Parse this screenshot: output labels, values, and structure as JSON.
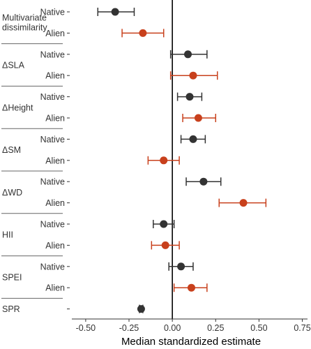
{
  "chart_data": {
    "type": "scatter",
    "xlabel": "Median standardized estimate",
    "xlim": [
      -0.58,
      0.78
    ],
    "xticks": [
      -0.5,
      -0.25,
      0.0,
      0.25,
      0.5,
      0.75
    ],
    "xtick_labels": [
      "-0.50",
      "-0.25",
      "0.00",
      "0.25",
      "0.50",
      "0.75"
    ],
    "reference_line_x": 0,
    "grid": false,
    "colors": {
      "native": "#333333",
      "alien": "#c8401c",
      "axis": "#333333",
      "separator": "#666666",
      "text": "#333333"
    },
    "groups": [
      {
        "label_lines": [
          "Multivariate",
          "dissimilarity"
        ],
        "rows": [
          {
            "label": "Native",
            "origin": "native",
            "estimate": -0.33,
            "low": -0.43,
            "high": -0.22
          },
          {
            "label": "Alien",
            "origin": "alien",
            "estimate": -0.17,
            "low": -0.29,
            "high": -0.05
          }
        ]
      },
      {
        "label_lines": [
          "ΔSLA"
        ],
        "rows": [
          {
            "label": "Native",
            "origin": "native",
            "estimate": 0.09,
            "low": -0.01,
            "high": 0.2
          },
          {
            "label": "Alien",
            "origin": "alien",
            "estimate": 0.12,
            "low": -0.01,
            "high": 0.26
          }
        ]
      },
      {
        "label_lines": [
          "ΔHeight"
        ],
        "rows": [
          {
            "label": "Native",
            "origin": "native",
            "estimate": 0.1,
            "low": 0.03,
            "high": 0.17
          },
          {
            "label": "Alien",
            "origin": "alien",
            "estimate": 0.15,
            "low": 0.06,
            "high": 0.25
          }
        ]
      },
      {
        "label_lines": [
          "ΔSM"
        ],
        "rows": [
          {
            "label": "Native",
            "origin": "native",
            "estimate": 0.12,
            "low": 0.05,
            "high": 0.19
          },
          {
            "label": "Alien",
            "origin": "alien",
            "estimate": -0.05,
            "low": -0.14,
            "high": 0.04
          }
        ]
      },
      {
        "label_lines": [
          "ΔWD"
        ],
        "rows": [
          {
            "label": "Native",
            "origin": "native",
            "estimate": 0.18,
            "low": 0.08,
            "high": 0.28
          },
          {
            "label": "Alien",
            "origin": "alien",
            "estimate": 0.41,
            "low": 0.27,
            "high": 0.54
          }
        ]
      },
      {
        "label_lines": [
          "HII"
        ],
        "rows": [
          {
            "label": "Native",
            "origin": "native",
            "estimate": -0.05,
            "low": -0.11,
            "high": 0.01
          },
          {
            "label": "Alien",
            "origin": "alien",
            "estimate": -0.04,
            "low": -0.12,
            "high": 0.04
          }
        ]
      },
      {
        "label_lines": [
          "SPEI"
        ],
        "rows": [
          {
            "label": "Native",
            "origin": "native",
            "estimate": 0.05,
            "low": -0.02,
            "high": 0.12
          },
          {
            "label": "Alien",
            "origin": "alien",
            "estimate": 0.11,
            "low": 0.01,
            "high": 0.2
          }
        ]
      },
      {
        "label_lines": [
          "SPR"
        ],
        "rows": [
          {
            "label": "",
            "origin": "native",
            "estimate": -0.18,
            "low": -0.19,
            "high": -0.17
          }
        ]
      }
    ]
  }
}
